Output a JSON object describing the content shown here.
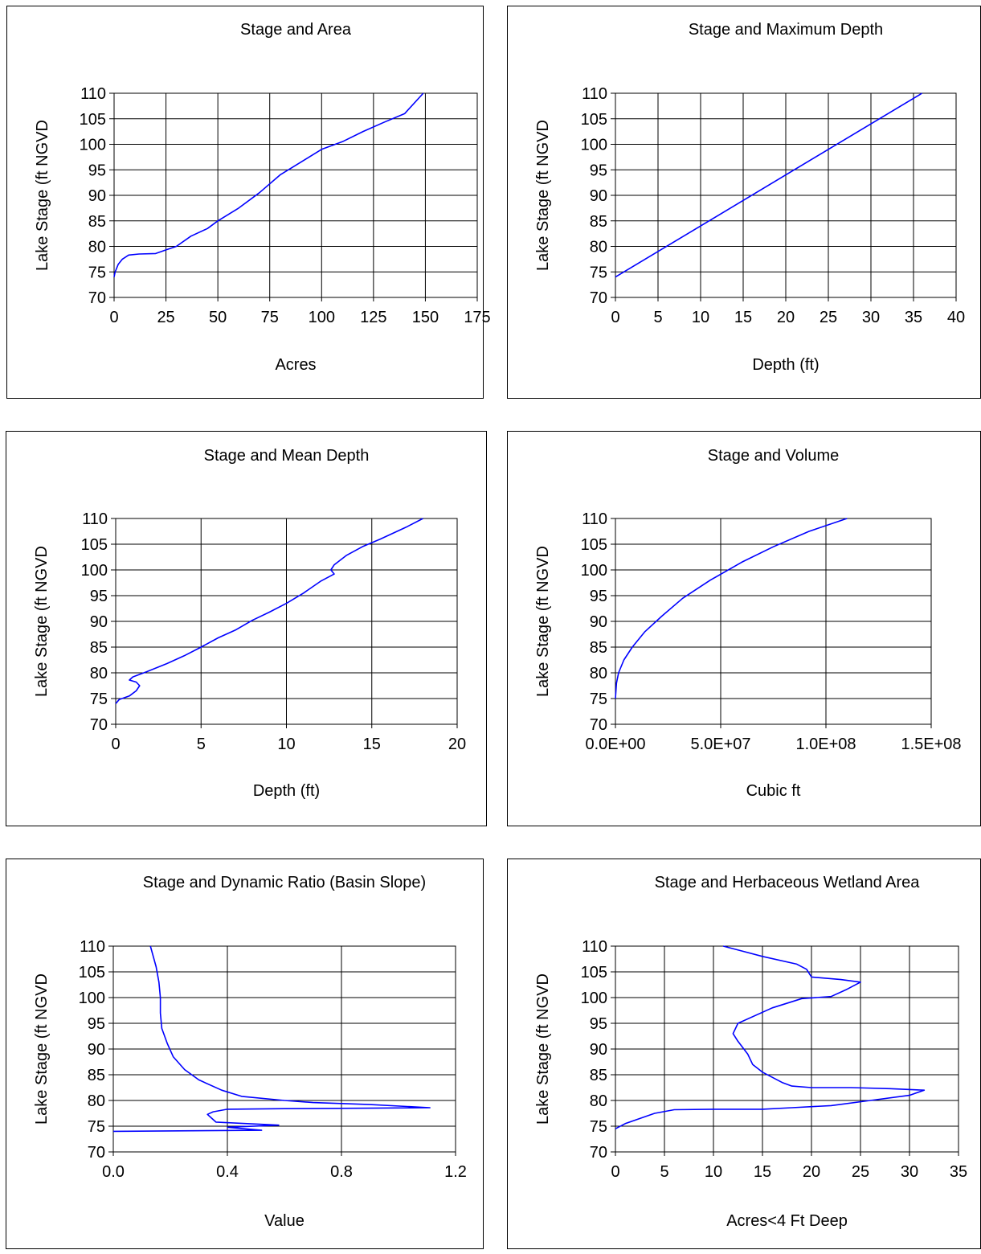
{
  "style": {
    "line_color": "#0000ff",
    "grid_color": "#000000",
    "background": "#ffffff"
  },
  "chart_data": [
    {
      "type": "line",
      "title": "Stage and Area",
      "xlabel": "Acres",
      "ylabel": "Lake Stage (ft NGVD",
      "xlim": [
        0,
        175
      ],
      "ylim": [
        70,
        110
      ],
      "xticks": [
        0,
        25,
        50,
        75,
        100,
        125,
        150,
        175
      ],
      "xtick_labels": [
        "0",
        "25",
        "50",
        "75",
        "100",
        "125",
        "150",
        "175"
      ],
      "yticks": [
        70,
        75,
        80,
        85,
        90,
        95,
        100,
        105,
        110
      ],
      "ytick_labels": [
        "70",
        "75",
        "80",
        "85",
        "90",
        "95",
        "100",
        "105",
        "110"
      ],
      "grid": true,
      "series": [
        {
          "points": [
            [
              0,
              74
            ],
            [
              0.5,
              75
            ],
            [
              2,
              76.5
            ],
            [
              4,
              77.5
            ],
            [
              7,
              78.3
            ],
            [
              12,
              78.5
            ],
            [
              20,
              78.6
            ],
            [
              25,
              79.3
            ],
            [
              30,
              80
            ],
            [
              37,
              82
            ],
            [
              45,
              83.5
            ],
            [
              50,
              85
            ],
            [
              60,
              87.5
            ],
            [
              70,
              90.5
            ],
            [
              80,
              94
            ],
            [
              90,
              96.5
            ],
            [
              100,
              99
            ],
            [
              110,
              100.5
            ],
            [
              120,
              102.5
            ],
            [
              130,
              104.3
            ],
            [
              140,
              106
            ],
            [
              149,
              110
            ]
          ]
        }
      ]
    },
    {
      "type": "line",
      "title": "Stage and Maximum Depth",
      "xlabel": "Depth (ft)",
      "ylabel": "Lake Stage (ft NGVD",
      "xlim": [
        0,
        40
      ],
      "ylim": [
        70,
        110
      ],
      "xticks": [
        0,
        5,
        10,
        15,
        20,
        25,
        30,
        35,
        40
      ],
      "xtick_labels": [
        "0",
        "5",
        "10",
        "15",
        "20",
        "25",
        "30",
        "35",
        "40"
      ],
      "yticks": [
        70,
        75,
        80,
        85,
        90,
        95,
        100,
        105,
        110
      ],
      "ytick_labels": [
        "70",
        "75",
        "80",
        "85",
        "90",
        "95",
        "100",
        "105",
        "110"
      ],
      "grid": true,
      "series": [
        {
          "points": [
            [
              0,
              74
            ],
            [
              36,
              110
            ]
          ]
        }
      ]
    },
    {
      "type": "line",
      "title": "Stage and Mean Depth",
      "xlabel": "Depth (ft)",
      "ylabel": "Lake Stage (ft NGVD",
      "xlim": [
        0,
        20
      ],
      "ylim": [
        70,
        110
      ],
      "xticks": [
        0,
        5,
        10,
        15,
        20
      ],
      "xtick_labels": [
        "0",
        "5",
        "10",
        "15",
        "20"
      ],
      "yticks": [
        70,
        75,
        80,
        85,
        90,
        95,
        100,
        105,
        110
      ],
      "ytick_labels": [
        "70",
        "75",
        "80",
        "85",
        "90",
        "95",
        "100",
        "105",
        "110"
      ],
      "grid": true,
      "series": [
        {
          "points": [
            [
              0,
              74
            ],
            [
              0.2,
              74.8
            ],
            [
              0.8,
              75.5
            ],
            [
              1.2,
              76.5
            ],
            [
              1.4,
              77.5
            ],
            [
              1.2,
              78.2
            ],
            [
              0.8,
              78.6
            ],
            [
              1,
              79.2
            ],
            [
              1.8,
              80.2
            ],
            [
              3,
              81.8
            ],
            [
              4,
              83.3
            ],
            [
              5,
              85
            ],
            [
              6,
              86.8
            ],
            [
              7,
              88.3
            ],
            [
              8,
              90.2
            ],
            [
              9,
              91.8
            ],
            [
              10,
              93.5
            ],
            [
              11,
              95.5
            ],
            [
              12,
              97.8
            ],
            [
              12.8,
              99.2
            ],
            [
              12.6,
              100
            ],
            [
              12.8,
              101
            ],
            [
              13.5,
              102.8
            ],
            [
              14.5,
              104.6
            ],
            [
              15.5,
              106
            ],
            [
              17,
              108.3
            ],
            [
              18,
              110
            ]
          ]
        }
      ]
    },
    {
      "type": "line",
      "title": "Stage and Volume",
      "xlabel": "Cubic ft",
      "ylabel": "Lake Stage (ft NGVD",
      "xlim": [
        0,
        150000000
      ],
      "ylim": [
        70,
        110
      ],
      "xticks": [
        0,
        50000000,
        100000000,
        150000000
      ],
      "xtick_labels": [
        "0.0E+00",
        "5.0E+07",
        "1.0E+08",
        "1.5E+08"
      ],
      "yticks": [
        70,
        75,
        80,
        85,
        90,
        95,
        100,
        105,
        110
      ],
      "ytick_labels": [
        "70",
        "75",
        "80",
        "85",
        "90",
        "95",
        "100",
        "105",
        "110"
      ],
      "grid": true,
      "series": [
        {
          "points": [
            [
              0,
              75
            ],
            [
              500000,
              78
            ],
            [
              1500000,
              80
            ],
            [
              4000000,
              82.5
            ],
            [
              8000000,
              85
            ],
            [
              14000000,
              88
            ],
            [
              22000000,
              91
            ],
            [
              32000000,
              94.5
            ],
            [
              45000000,
              98
            ],
            [
              60000000,
              101.5
            ],
            [
              75000000,
              104.5
            ],
            [
              92000000,
              107.5
            ],
            [
              110000000,
              110
            ]
          ]
        }
      ]
    },
    {
      "type": "line",
      "title": "Stage and Dynamic Ratio (Basin Slope)",
      "xlabel": "Value",
      "ylabel": "Lake Stage (ft NGVD",
      "xlim": [
        0,
        1.2
      ],
      "ylim": [
        70,
        110
      ],
      "xticks": [
        0,
        0.4,
        0.8,
        1.2
      ],
      "xtick_labels": [
        "0.0",
        "0.4",
        "0.8",
        "1.2"
      ],
      "yticks": [
        70,
        75,
        80,
        85,
        90,
        95,
        100,
        105,
        110
      ],
      "ytick_labels": [
        "70",
        "75",
        "80",
        "85",
        "90",
        "95",
        "100",
        "105",
        "110"
      ],
      "grid": true,
      "series": [
        {
          "points": [
            [
              0,
              74
            ],
            [
              0.52,
              74.2
            ],
            [
              0.4,
              74.8
            ],
            [
              0.58,
              75.2
            ],
            [
              0.36,
              75.8
            ],
            [
              0.34,
              76.8
            ],
            [
              0.33,
              77.3
            ],
            [
              0.35,
              77.8
            ],
            [
              0.4,
              78.3
            ],
            [
              0.6,
              78.4
            ],
            [
              0.9,
              78.5
            ],
            [
              1.11,
              78.6
            ],
            [
              0.9,
              79.2
            ],
            [
              0.7,
              79.6
            ],
            [
              0.6,
              80
            ],
            [
              0.45,
              80.8
            ],
            [
              0.38,
              82
            ],
            [
              0.3,
              84
            ],
            [
              0.25,
              86
            ],
            [
              0.21,
              88.5
            ],
            [
              0.19,
              91
            ],
            [
              0.17,
              94
            ],
            [
              0.165,
              97
            ],
            [
              0.165,
              100
            ],
            [
              0.16,
              103
            ],
            [
              0.15,
              106
            ],
            [
              0.13,
              110
            ]
          ]
        }
      ]
    },
    {
      "type": "line",
      "title": "Stage and Herbaceous Wetland Area",
      "xlabel": "Acres<4 Ft Deep",
      "ylabel": "Lake Stage (ft NGVD",
      "xlim": [
        0,
        35
      ],
      "ylim": [
        70,
        110
      ],
      "xticks": [
        0,
        5,
        10,
        15,
        20,
        25,
        30,
        35
      ],
      "xtick_labels": [
        "0",
        "5",
        "10",
        "15",
        "20",
        "25",
        "30",
        "35"
      ],
      "yticks": [
        70,
        75,
        80,
        85,
        90,
        95,
        100,
        105,
        110
      ],
      "ytick_labels": [
        "70",
        "75",
        "80",
        "85",
        "90",
        "95",
        "100",
        "105",
        "110"
      ],
      "grid": true,
      "series": [
        {
          "points": [
            [
              0,
              74.5
            ],
            [
              1,
              75.5
            ],
            [
              2.5,
              76.5
            ],
            [
              4,
              77.5
            ],
            [
              6,
              78.2
            ],
            [
              10,
              78.3
            ],
            [
              15,
              78.3
            ],
            [
              18,
              78.6
            ],
            [
              22,
              79
            ],
            [
              26,
              80
            ],
            [
              30,
              81
            ],
            [
              31.5,
              82
            ],
            [
              28,
              82.3
            ],
            [
              24,
              82.5
            ],
            [
              20,
              82.5
            ],
            [
              18,
              82.8
            ],
            [
              17,
              83.5
            ],
            [
              15,
              85.5
            ],
            [
              14,
              87
            ],
            [
              13.5,
              89
            ],
            [
              12.5,
              91.5
            ],
            [
              12,
              93
            ],
            [
              12.5,
              95
            ],
            [
              16,
              98
            ],
            [
              19,
              99.8
            ],
            [
              22,
              100.2
            ],
            [
              23.5,
              101.5
            ],
            [
              25,
              103
            ],
            [
              23,
              103.5
            ],
            [
              20,
              104
            ],
            [
              19.5,
              105.5
            ],
            [
              18.5,
              106.5
            ],
            [
              15,
              108
            ],
            [
              13,
              109
            ],
            [
              11,
              110
            ]
          ]
        }
      ]
    }
  ]
}
